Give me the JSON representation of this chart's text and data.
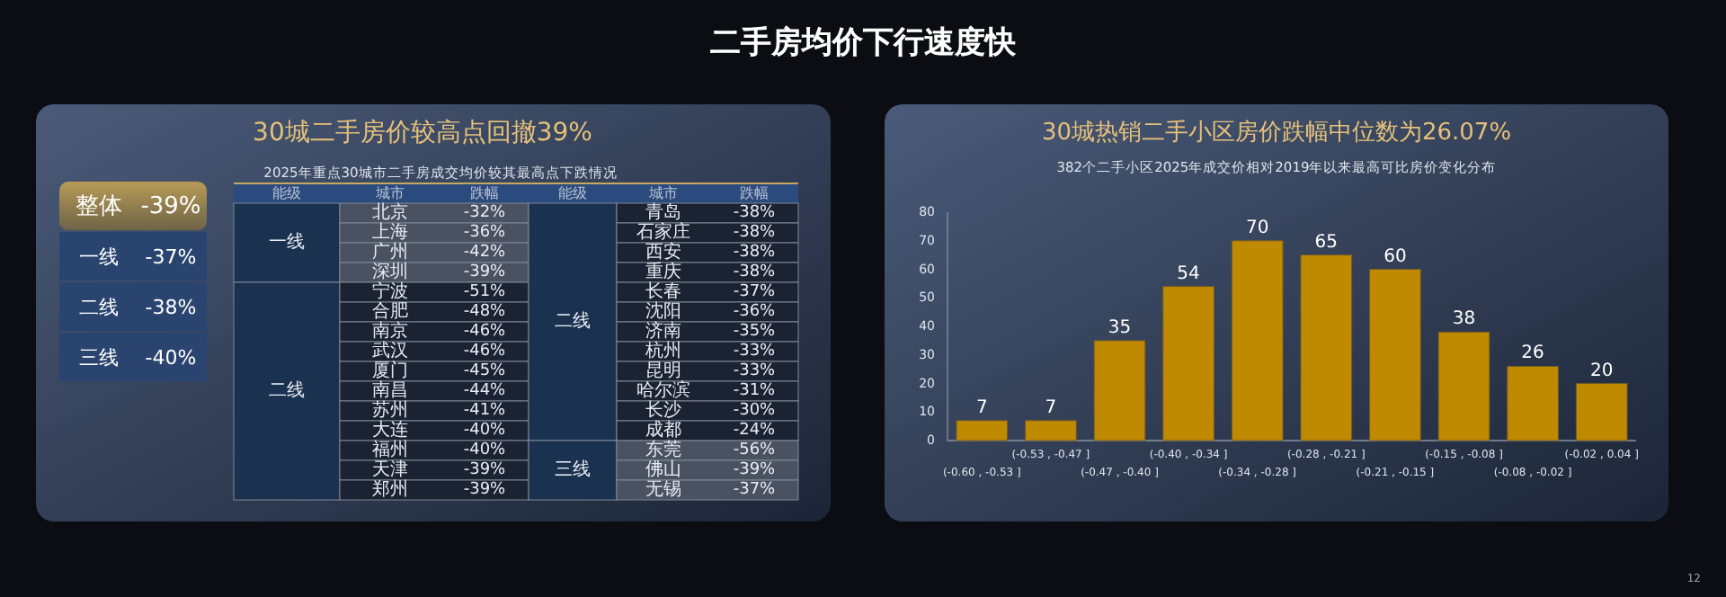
{
  "chart_data": [
    {
      "type": "other",
      "title": "二手房均价下行速度快",
      "annotations": [
        "12"
      ]
    },
    {
      "type": "other",
      "title": "30城二手房价较高点回撤39%",
      "subtitle": "2025年重点30城市二手房成交均价较其最高点下跌情况",
      "annotations": [
        "整体",
        "-39%",
        "一线",
        "-37%",
        "二线",
        "-38%",
        "三线",
        "-40%",
        "能级",
        "城市",
        "跌幅",
        "能级",
        "城市",
        "跌幅",
        "一线",
        "二线",
        "二线",
        "三线",
        "北京",
        "-32%",
        "上海",
        "-36%",
        "广州",
        "-42%",
        "深圳",
        "-39%",
        "宁波",
        "-51%",
        "合肥",
        "-48%",
        "南京",
        "-46%",
        "武汉",
        "-46%",
        "厦门",
        "-45%",
        "南昌",
        "-44%",
        "苏州",
        "-41%",
        "大连",
        "-40%",
        "福州",
        "-40%",
        "天津",
        "-39%",
        "郑州",
        "-39%",
        "青岛",
        "-38%",
        "石家庄",
        "-38%",
        "西安",
        "-38%",
        "重庆",
        "-38%",
        "长春",
        "-37%",
        "沈阳",
        "-36%",
        "济南",
        "-35%",
        "杭州",
        "-33%",
        "昆明",
        "-33%",
        "哈尔滨",
        "-31%",
        "长沙",
        "-30%",
        "成都",
        "-24%",
        "东莞",
        "-56%",
        "佛山",
        "-39%",
        "无锡",
        "-37%"
      ]
    },
    {
      "type": "bar",
      "title": "30城热销二手小区房价跌幅中位数为26.07%",
      "subtitle": "382个二手小区2025年成交价相对2019年以来最高可比房价变化分布",
      "categories": [
        "(-0.60 , -0.53 ]",
        "(-0.53 , -0.47 ]",
        "(-0.47 , -0.40 ]",
        "(-0.40 , -0.34 ]",
        "(-0.34 , -0.28 ]",
        "(-0.28 , -0.21 ]",
        "(-0.21 , -0.15 ]",
        "(-0.15 , -0.08 ]",
        "(-0.08 , -0.02 ]",
        "(-0.02 , 0.04 ]"
      ],
      "values": [
        7,
        7,
        35,
        54,
        70,
        65,
        60,
        38,
        26,
        20
      ],
      "color": "#c08a00",
      "ylim": [
        0,
        80
      ],
      "yticks": [
        0,
        10,
        20,
        30,
        40,
        50,
        60,
        70,
        80
      ],
      "data_labels": true,
      "grid": false
    }
  ]
}
